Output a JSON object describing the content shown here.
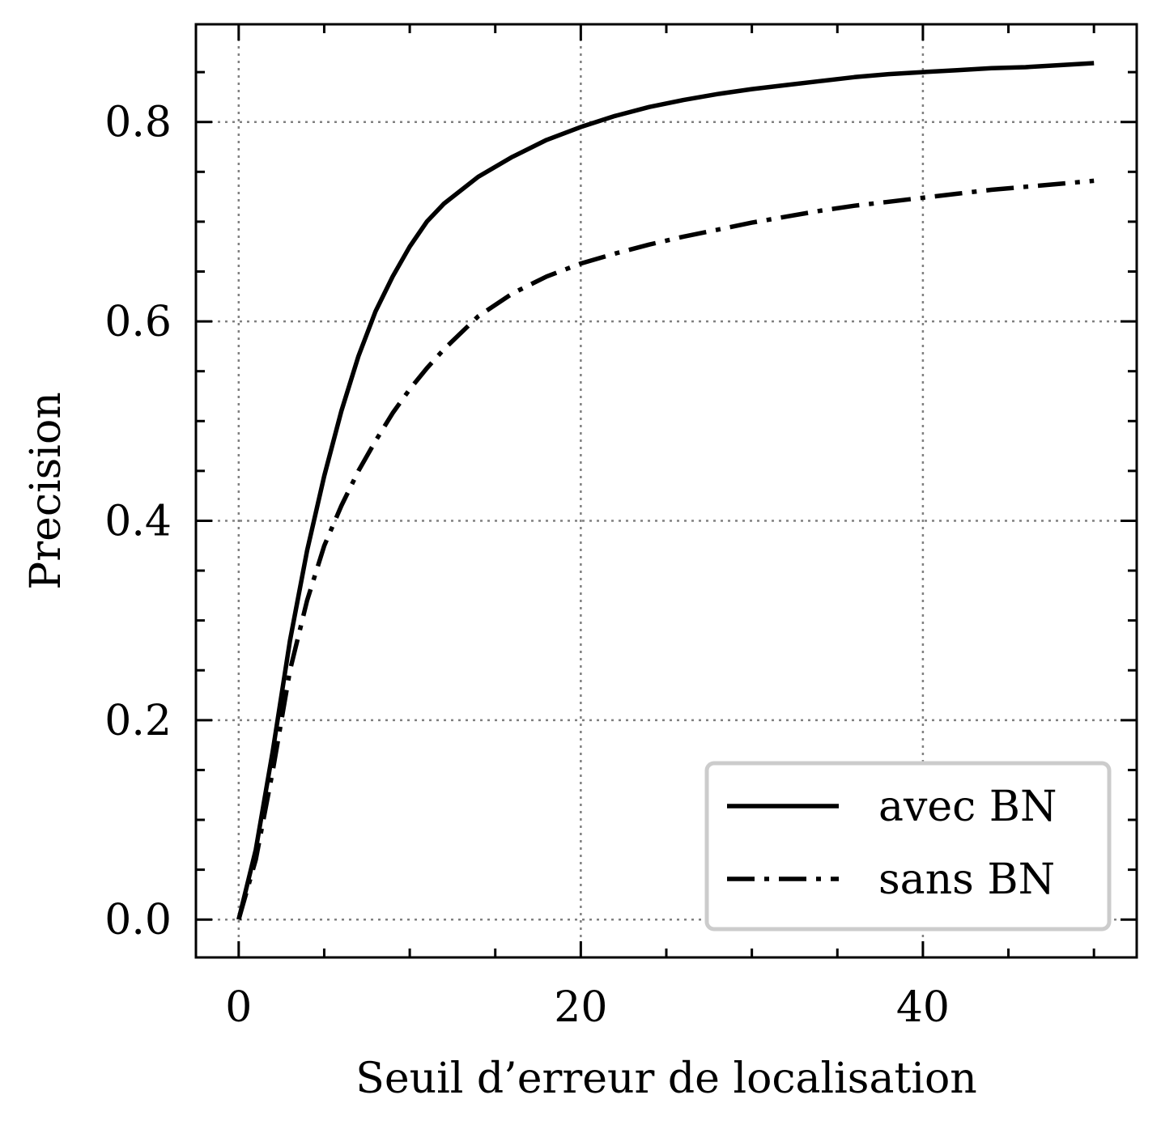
{
  "chart_data": {
    "type": "line",
    "xlabel": "Seuil d’erreur de localisation",
    "ylabel": "Precision",
    "xlim": [
      -2.5,
      52.5
    ],
    "ylim": [
      -0.038,
      0.898
    ],
    "x_ticks": [
      0,
      20,
      40
    ],
    "x_tick_labels": [
      "0",
      "20",
      "40"
    ],
    "x_minor_step": 5,
    "y_ticks": [
      0.0,
      0.2,
      0.4,
      0.6,
      0.8
    ],
    "y_tick_labels": [
      "0.0",
      "0.2",
      "0.4",
      "0.6",
      "0.8"
    ],
    "y_minor_step": 0.05,
    "grid": true,
    "legend_position": "bottom-right",
    "series": [
      {
        "name": "avec BN",
        "style": "solid",
        "color": "#000000",
        "x": [
          0,
          1,
          2,
          3,
          4,
          5,
          6,
          7,
          8,
          9,
          10,
          11,
          12,
          14,
          16,
          18,
          20,
          22,
          24,
          26,
          28,
          30,
          32,
          34,
          36,
          38,
          40,
          42,
          44,
          46,
          48,
          50
        ],
        "y": [
          0.0,
          0.07,
          0.17,
          0.28,
          0.37,
          0.445,
          0.51,
          0.565,
          0.61,
          0.645,
          0.675,
          0.7,
          0.718,
          0.745,
          0.765,
          0.782,
          0.795,
          0.806,
          0.815,
          0.822,
          0.828,
          0.833,
          0.837,
          0.841,
          0.845,
          0.848,
          0.85,
          0.852,
          0.854,
          0.855,
          0.857,
          0.859
        ]
      },
      {
        "name": "sans BN",
        "style": "dashdot",
        "color": "#000000",
        "x": [
          0,
          1,
          2,
          3,
          4,
          5,
          6,
          7,
          8,
          9,
          10,
          11,
          12,
          14,
          16,
          18,
          20,
          22,
          24,
          26,
          28,
          30,
          32,
          34,
          36,
          38,
          40,
          42,
          44,
          46,
          48,
          50
        ],
        "y": [
          0.0,
          0.06,
          0.15,
          0.25,
          0.32,
          0.375,
          0.415,
          0.45,
          0.48,
          0.508,
          0.532,
          0.553,
          0.572,
          0.605,
          0.628,
          0.645,
          0.658,
          0.668,
          0.677,
          0.685,
          0.692,
          0.699,
          0.705,
          0.711,
          0.716,
          0.72,
          0.724,
          0.728,
          0.732,
          0.735,
          0.738,
          0.741
        ]
      }
    ]
  }
}
